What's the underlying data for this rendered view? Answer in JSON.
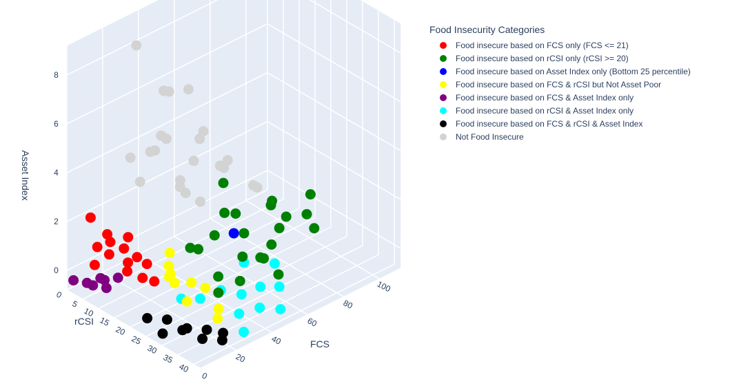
{
  "chart_data": {
    "type": "scatter3d",
    "axes": {
      "x": {
        "title": "FCS",
        "ticks": [
          "0",
          "20",
          "40",
          "60",
          "80",
          "100"
        ],
        "range": [
          0,
          112
        ]
      },
      "y": {
        "title": "rCSI",
        "ticks": [
          "0",
          "5",
          "10",
          "15",
          "20",
          "25",
          "30",
          "35",
          "40"
        ],
        "range": [
          0,
          42
        ]
      },
      "z": {
        "title": "Asset Index",
        "ticks": [
          "0",
          "2",
          "4",
          "6",
          "8"
        ],
        "range": [
          -0.8,
          9.2
        ]
      }
    },
    "grid": true,
    "legend_position": "right",
    "legend": {
      "title": "Food Insecurity Categories",
      "items": [
        {
          "label": "Food insecure based on FCS only (FCS <= 21)",
          "color": "#ff0000"
        },
        {
          "label": "Food insecure based on rCSI only (rCSI >= 20)",
          "color": "#008000"
        },
        {
          "label": "Food insecure based on Asset Index only (Bottom 25 percentile)",
          "color": "#0000ff"
        },
        {
          "label": "Food insecure based on FCS & rCSI but Not Asset Poor",
          "color": "#ffff00"
        },
        {
          "label": "Food insecure based on FCS & Asset Index only",
          "color": "#800080"
        },
        {
          "label": "Food insecure based on rCSI & Asset Index only",
          "color": "#00ffff"
        },
        {
          "label": "Food insecure based on FCS & rCSI & Asset Index",
          "color": "#000000"
        },
        {
          "label": "Not Food Insecure",
          "color": "#d3d3d3"
        }
      ]
    },
    "series": [
      {
        "name": "Food insecure based on FCS only (FCS <= 21)",
        "color": "#ff0000",
        "points": [
          [
            8,
            3,
            2.1
          ],
          [
            12,
            6,
            1.5
          ],
          [
            16,
            9,
            1.0
          ],
          [
            18,
            12,
            0.8
          ],
          [
            20,
            14,
            0.6
          ],
          [
            6,
            10,
            1.2
          ],
          [
            14,
            16,
            0.4
          ],
          [
            10,
            4,
            0.9
          ],
          [
            20,
            8,
            0.2
          ],
          [
            17,
            18,
            0.3
          ],
          [
            5,
            6,
            0.5
          ],
          [
            19,
            3,
            0.7
          ],
          [
            13,
            12,
            1.8
          ],
          [
            9,
            14,
            0.7
          ]
        ]
      },
      {
        "name": "Food insecure based on rCSI only (rCSI >= 20)",
        "color": "#008000",
        "points": [
          [
            30,
            22,
            1.5
          ],
          [
            40,
            24,
            1.8
          ],
          [
            50,
            25,
            2.4
          ],
          [
            60,
            22,
            1.0
          ],
          [
            45,
            30,
            1.2
          ],
          [
            35,
            28,
            0.6
          ],
          [
            55,
            30,
            0.8
          ],
          [
            65,
            28,
            2.6
          ],
          [
            70,
            25,
            0.4
          ],
          [
            75,
            22,
            1.6
          ],
          [
            80,
            24,
            1.1
          ],
          [
            28,
            32,
            0.5
          ],
          [
            48,
            35,
            1.4
          ],
          [
            58,
            34,
            0.3
          ],
          [
            38,
            20,
            1.0
          ],
          [
            85,
            30,
            0.9
          ],
          [
            90,
            26,
            1.8
          ],
          [
            95,
            22,
            0.5
          ],
          [
            52,
            20,
            3.2
          ],
          [
            42,
            26,
            2.8
          ],
          [
            62,
            32,
            1.9
          ],
          [
            33,
            36,
            1.1
          ]
        ]
      },
      {
        "name": "Food insecure based on Asset Index only (Bottom 25 percentile)",
        "color": "#0000ff",
        "points": [
          [
            72,
            12,
            -0.2
          ]
        ]
      },
      {
        "name": "Food insecure based on FCS & rCSI but Not Asset Poor",
        "color": "#ffff00",
        "points": [
          [
            18,
            22,
            1.2
          ],
          [
            16,
            25,
            0.8
          ],
          [
            20,
            28,
            0.9
          ],
          [
            14,
            30,
            0.5
          ],
          [
            19,
            33,
            1.1
          ],
          [
            12,
            26,
            1.4
          ],
          [
            21,
            36,
            0.4
          ],
          [
            17,
            38,
            0.3
          ],
          [
            15,
            24,
            2.0
          ],
          [
            20,
            21,
            0.6
          ]
        ]
      },
      {
        "name": "Food insecure based on FCS & Asset Index only",
        "color": "#800080",
        "points": [
          [
            2,
            1,
            -0.4
          ],
          [
            6,
            3,
            -0.5
          ],
          [
            10,
            5,
            -0.3
          ],
          [
            14,
            4,
            -0.6
          ],
          [
            18,
            6,
            -0.5
          ],
          [
            8,
            8,
            -0.4
          ],
          [
            4,
            6,
            -0.3
          ]
        ]
      },
      {
        "name": "Food insecure based on rCSI & Asset Index only",
        "color": "#00ffff",
        "points": [
          [
            25,
            22,
            -0.4
          ],
          [
            32,
            24,
            -0.5
          ],
          [
            40,
            26,
            -0.3
          ],
          [
            48,
            28,
            -0.6
          ],
          [
            55,
            30,
            -0.4
          ],
          [
            62,
            32,
            -0.5
          ],
          [
            70,
            26,
            -0.3
          ],
          [
            36,
            34,
            -0.5
          ],
          [
            44,
            36,
            -0.4
          ],
          [
            52,
            38,
            -0.6
          ],
          [
            28,
            40,
            -0.5
          ],
          [
            60,
            22,
            -0.2
          ]
        ]
      },
      {
        "name": "Food insecure based on FCS & rCSI & Asset Index",
        "color": "#000000",
        "points": [
          [
            6,
            22,
            -0.5
          ],
          [
            10,
            26,
            -0.4
          ],
          [
            14,
            30,
            -0.6
          ],
          [
            18,
            34,
            -0.5
          ],
          [
            20,
            38,
            -0.4
          ],
          [
            8,
            32,
            -0.3
          ],
          [
            12,
            36,
            -0.5
          ],
          [
            16,
            40,
            -0.4
          ],
          [
            4,
            28,
            -0.6
          ]
        ]
      },
      {
        "name": "Not Food Insecure",
        "color": "#d3d3d3",
        "points": [
          [
            30,
            5,
            8.5
          ],
          [
            40,
            8,
            6.5
          ],
          [
            50,
            4,
            5.8
          ],
          [
            35,
            10,
            5.0
          ],
          [
            55,
            12,
            4.6
          ],
          [
            45,
            6,
            4.2
          ],
          [
            60,
            8,
            3.8
          ],
          [
            65,
            14,
            3.2
          ],
          [
            38,
            16,
            3.0
          ],
          [
            28,
            12,
            4.8
          ],
          [
            70,
            10,
            2.4
          ],
          [
            75,
            6,
            2.0
          ],
          [
            48,
            15,
            2.2
          ],
          [
            58,
            3,
            1.8
          ],
          [
            32,
            2,
            3.6
          ],
          [
            42,
            12,
            2.8
          ],
          [
            85,
            12,
            1.2
          ],
          [
            90,
            8,
            0.8
          ],
          [
            52,
            9,
            6.2
          ],
          [
            62,
            5,
            2.6
          ],
          [
            36,
            6,
            4.0
          ],
          [
            25,
            9,
            3.4
          ]
        ]
      }
    ]
  }
}
